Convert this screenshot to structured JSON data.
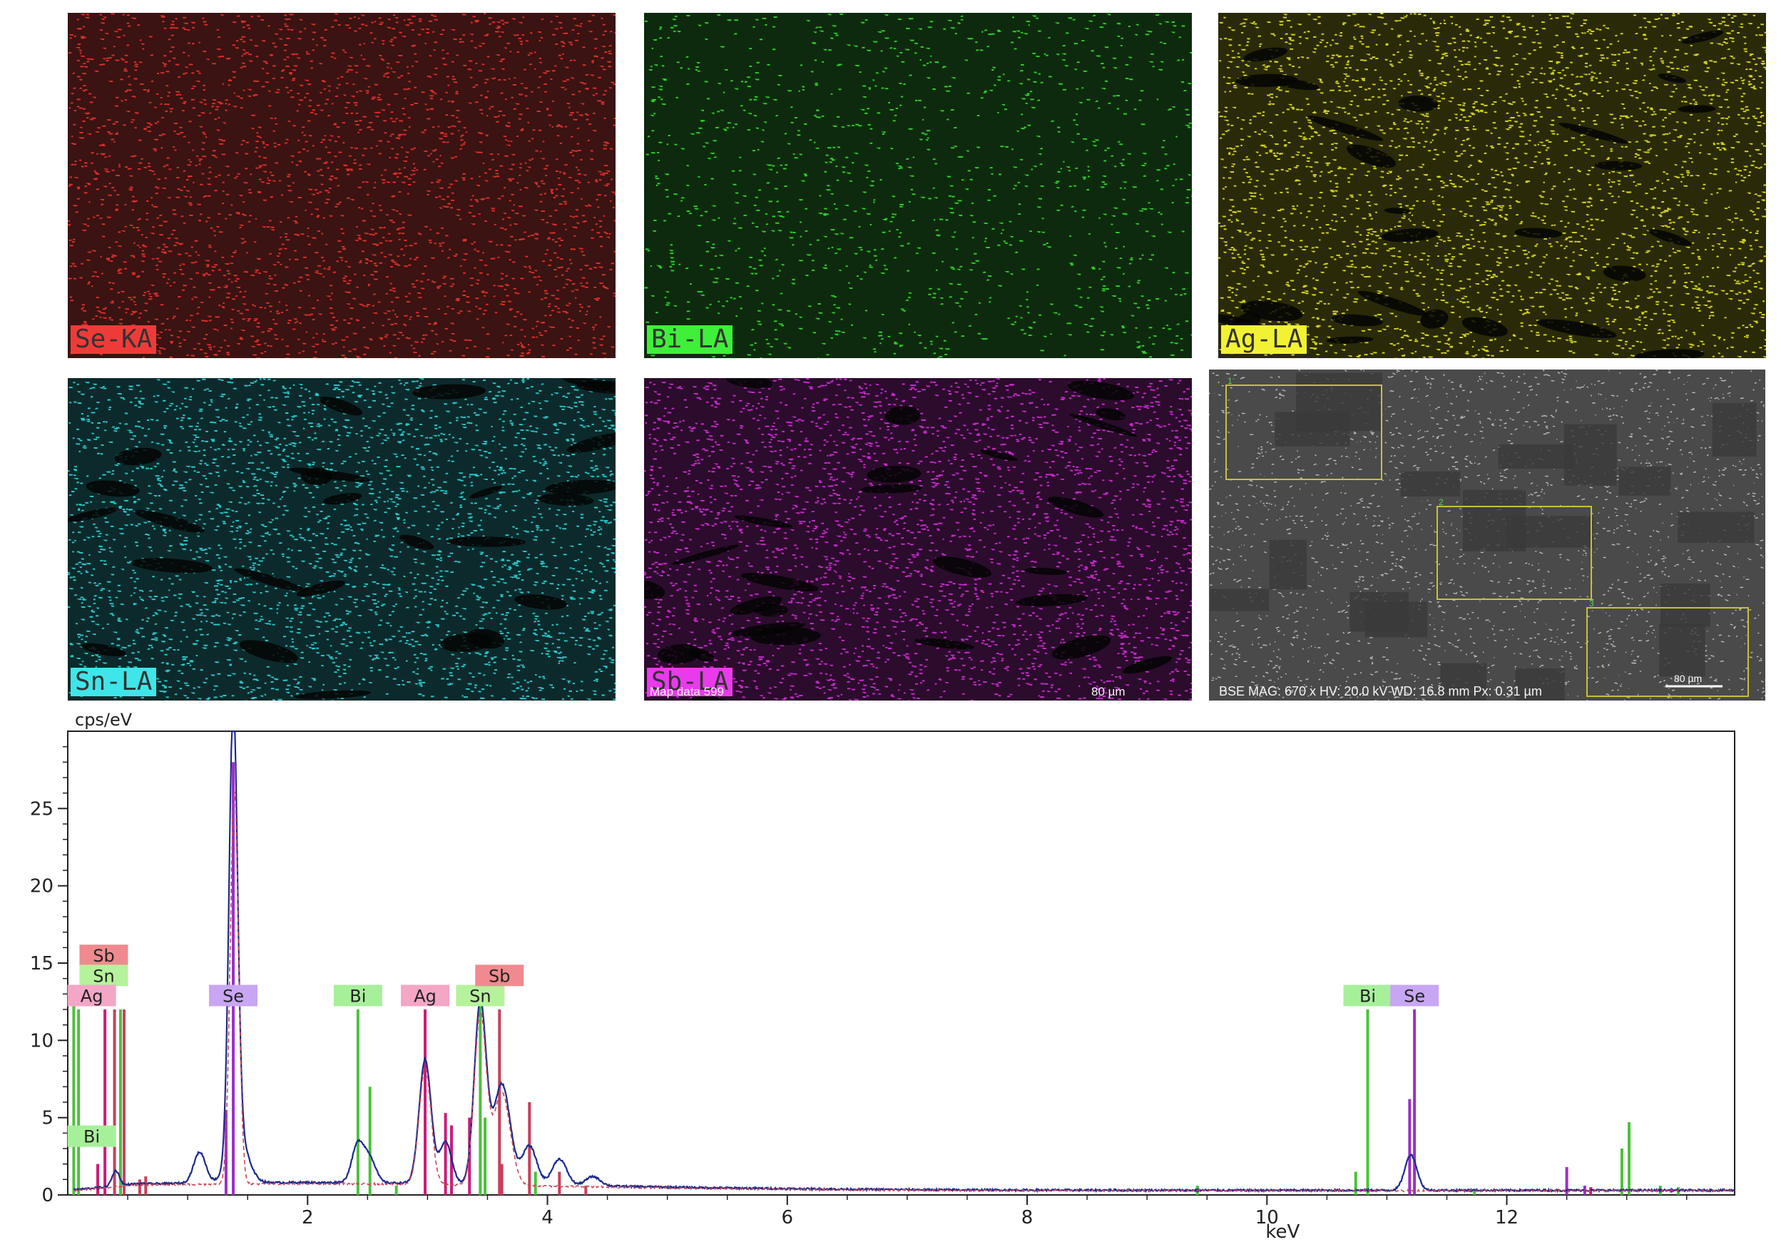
{
  "maps": [
    {
      "label": "Se-KA",
      "color": "#e2302d",
      "label_bg": "#ef3b38"
    },
    {
      "label": "Bi-LA",
      "color": "#2ed82a",
      "label_bg": "#3ef03a"
    },
    {
      "label": "Ag-LA",
      "color": "#dcdc22",
      "label_bg": "#f2f234"
    },
    {
      "label": "Sn-LA",
      "color": "#2ccfd2",
      "label_bg": "#3ee6e9"
    },
    {
      "label": "Sb-LA",
      "color": "#d22ad6",
      "label_bg": "#e93aec"
    }
  ],
  "map_footer": {
    "left": "Map data 599",
    "right": "80 µm"
  },
  "sem": {
    "footer": "BSE   MAG: 670 x   HV: 20.0 kV   WD: 16.8 mm   Px: 0.31 µm",
    "scale": "80 µm",
    "boxes": [
      "1",
      "2",
      "3"
    ]
  },
  "chart_data": {
    "type": "line",
    "ylabel": "cps/eV",
    "xlabel": "keV",
    "xlim": [
      0,
      13.9
    ],
    "ylim": [
      0,
      30
    ],
    "xticks": [
      2,
      4,
      6,
      8,
      10,
      12
    ],
    "yticks": [
      0,
      5,
      10,
      15,
      20,
      25
    ],
    "grid": false,
    "series": [
      {
        "color": "#1c2a8c",
        "peaks": [
          {
            "x": 0.4,
            "height": 1.0,
            "width": 0.03
          },
          {
            "x": 1.1,
            "height": 2.0,
            "width": 0.05
          },
          {
            "x": 1.38,
            "height": 28.5,
            "width": 0.035
          },
          {
            "x": 1.42,
            "height": 3.0,
            "width": 0.08
          },
          {
            "x": 2.42,
            "height": 2.5,
            "width": 0.05
          },
          {
            "x": 2.52,
            "height": 1.5,
            "width": 0.05
          },
          {
            "x": 2.98,
            "height": 8.0,
            "width": 0.05
          },
          {
            "x": 3.15,
            "height": 2.7,
            "width": 0.05
          },
          {
            "x": 3.44,
            "height": 11.7,
            "width": 0.05
          },
          {
            "x": 3.62,
            "height": 6.5,
            "width": 0.07
          },
          {
            "x": 3.85,
            "height": 2.5,
            "width": 0.06
          },
          {
            "x": 4.1,
            "height": 1.7,
            "width": 0.06
          },
          {
            "x": 4.38,
            "height": 0.6,
            "width": 0.06
          },
          {
            "x": 11.2,
            "height": 2.3,
            "width": 0.05
          }
        ]
      },
      {
        "color": "#c8485a",
        "peaks": [
          {
            "x": 1.39,
            "height": 25.5,
            "width": 0.035
          },
          {
            "x": 2.98,
            "height": 7.5,
            "width": 0.05
          },
          {
            "x": 3.44,
            "height": 11.0,
            "width": 0.05
          },
          {
            "x": 3.62,
            "height": 6.0,
            "width": 0.07
          }
        ]
      }
    ],
    "element_lines": [
      {
        "x": 0.05,
        "height": 12.5,
        "color": "#4ac23a"
      },
      {
        "x": 0.09,
        "height": 12.0,
        "color": "#4ac23a"
      },
      {
        "x": 0.25,
        "height": 2.0,
        "color": "#c81e78"
      },
      {
        "x": 0.31,
        "height": 12.0,
        "color": "#c81e78"
      },
      {
        "x": 0.39,
        "height": 12.0,
        "color": "#c8405a"
      },
      {
        "x": 0.44,
        "height": 12.0,
        "color": "#4ac23a"
      },
      {
        "x": 0.47,
        "height": 12.0,
        "color": "#c8405a"
      },
      {
        "x": 0.6,
        "height": 1.0,
        "color": "#c8405a"
      },
      {
        "x": 0.65,
        "height": 1.2,
        "color": "#c8405a"
      },
      {
        "x": 1.32,
        "height": 5.5,
        "color": "#9b30c8"
      },
      {
        "x": 1.38,
        "height": 28.0,
        "color": "#9b30c8"
      },
      {
        "x": 2.42,
        "height": 12.0,
        "color": "#4ac23a"
      },
      {
        "x": 2.52,
        "height": 7.0,
        "color": "#4ac23a"
      },
      {
        "x": 2.74,
        "height": 0.6,
        "color": "#4ac23a"
      },
      {
        "x": 2.98,
        "height": 12.0,
        "color": "#c81e78"
      },
      {
        "x": 3.15,
        "height": 5.3,
        "color": "#c81e78"
      },
      {
        "x": 3.2,
        "height": 4.5,
        "color": "#c81e78"
      },
      {
        "x": 3.35,
        "height": 5.0,
        "color": "#c81e78"
      },
      {
        "x": 3.44,
        "height": 12.5,
        "color": "#4ac23a"
      },
      {
        "x": 3.48,
        "height": 5.0,
        "color": "#4ac23a"
      },
      {
        "x": 3.6,
        "height": 12.0,
        "color": "#c8405a"
      },
      {
        "x": 3.62,
        "height": 2.0,
        "color": "#c8405a"
      },
      {
        "x": 3.85,
        "height": 6.0,
        "color": "#c8405a"
      },
      {
        "x": 3.9,
        "height": 1.5,
        "color": "#4ac23a"
      },
      {
        "x": 4.1,
        "height": 1.5,
        "color": "#c8405a"
      },
      {
        "x": 4.32,
        "height": 0.6,
        "color": "#c8405a"
      },
      {
        "x": 9.42,
        "height": 0.6,
        "color": "#4ac23a"
      },
      {
        "x": 10.74,
        "height": 1.5,
        "color": "#4ac23a"
      },
      {
        "x": 10.84,
        "height": 12.0,
        "color": "#4ac23a"
      },
      {
        "x": 11.19,
        "height": 6.2,
        "color": "#9b30c8"
      },
      {
        "x": 11.23,
        "height": 12.0,
        "color": "#9b30c8"
      },
      {
        "x": 11.73,
        "height": 0.4,
        "color": "#4ac23a"
      },
      {
        "x": 12.5,
        "height": 1.8,
        "color": "#9b30c8"
      },
      {
        "x": 12.65,
        "height": 0.6,
        "color": "#9b30c8"
      },
      {
        "x": 12.7,
        "height": 0.5,
        "color": "#c81e78"
      },
      {
        "x": 12.96,
        "height": 3.0,
        "color": "#4ac23a"
      },
      {
        "x": 13.02,
        "height": 4.7,
        "color": "#4ac23a"
      },
      {
        "x": 13.28,
        "height": 0.6,
        "color": "#4ac23a"
      },
      {
        "x": 13.43,
        "height": 0.5,
        "color": "#4ac23a"
      }
    ],
    "peak_labels": [
      {
        "text": "Sb",
        "x": 0.3,
        "level": 15.5,
        "bg": "#f08a8e"
      },
      {
        "text": "Sn",
        "x": 0.3,
        "level": 14.2,
        "bg": "#b6f29c"
      },
      {
        "text": "Ag",
        "x": 0.2,
        "level": 12.9,
        "bg": "#f4a6c6"
      },
      {
        "text": "Bi",
        "x": 0.2,
        "level": 3.8,
        "bg": "#a6f09a"
      },
      {
        "text": "Se",
        "x": 1.38,
        "level": 12.9,
        "bg": "#c8a6f4"
      },
      {
        "text": "Bi",
        "x": 2.42,
        "level": 12.9,
        "bg": "#a6f09a"
      },
      {
        "text": "Ag",
        "x": 2.98,
        "level": 12.9,
        "bg": "#f4a6c6"
      },
      {
        "text": "Sn",
        "x": 3.44,
        "level": 12.9,
        "bg": "#b6f29c"
      },
      {
        "text": "Sb",
        "x": 3.6,
        "level": 14.2,
        "bg": "#f08a8e"
      },
      {
        "text": "Bi",
        "x": 10.84,
        "level": 12.9,
        "bg": "#a6f09a"
      },
      {
        "text": "Se",
        "x": 11.23,
        "level": 12.9,
        "bg": "#c8a6f4"
      }
    ]
  }
}
